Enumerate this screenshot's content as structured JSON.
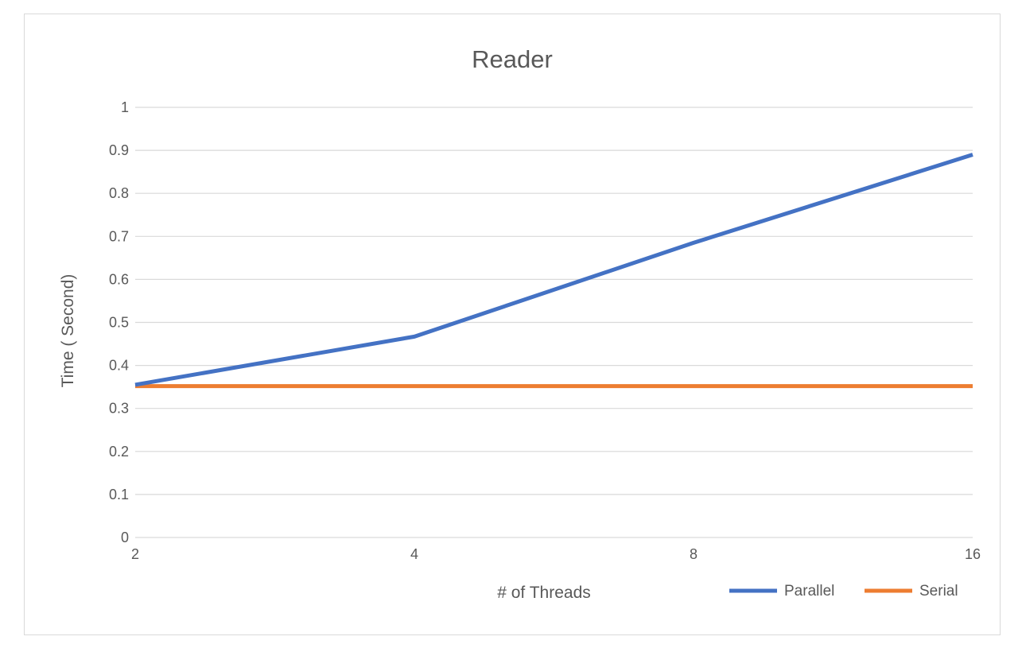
{
  "chart_data": {
    "type": "line",
    "title": "Reader",
    "xlabel": "# of Threads",
    "ylabel": "Time ( Second)",
    "categories": [
      "2",
      "4",
      "8",
      "16"
    ],
    "yticks": [
      "0",
      "0.1",
      "0.2",
      "0.3",
      "0.4",
      "0.5",
      "0.6",
      "0.7",
      "0.8",
      "0.9",
      "1"
    ],
    "ylim": [
      0,
      1
    ],
    "grid": true,
    "legend": "bottom-right",
    "series": [
      {
        "name": "Parallel",
        "color": "#4472C4",
        "values": [
          0.355,
          0.467,
          0.685,
          0.89
        ]
      },
      {
        "name": "Serial",
        "color": "#ED7D31",
        "values": [
          0.352,
          0.352,
          0.352,
          0.352
        ]
      }
    ]
  }
}
